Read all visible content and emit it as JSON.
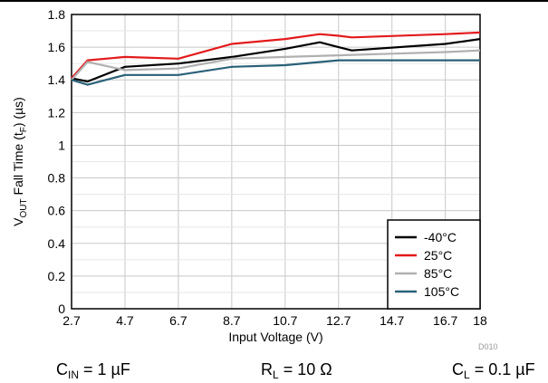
{
  "chart_data": {
    "type": "line",
    "xlabel": "Input Voltage (V)",
    "ylabel": {
      "main": "V",
      "sub": "OUT",
      "rest": " Fall Time (t",
      "sub2": "F",
      "end": ")  (µs)"
    },
    "xlim": [
      2.7,
      18
    ],
    "ylim": [
      0,
      1.8
    ],
    "xticks": [
      2.7,
      4.7,
      6.7,
      8.7,
      10.7,
      12.7,
      14.7,
      16.7,
      18
    ],
    "xtick_labels": [
      "2.7",
      "4.7",
      "6.7",
      "8.7",
      "10.7",
      "12.7",
      "14.7",
      "16.7",
      "18"
    ],
    "yticks": [
      0,
      0.2,
      0.4,
      0.6,
      0.8,
      1,
      1.2,
      1.4,
      1.6,
      1.8
    ],
    "ytick_labels": [
      "0",
      "0.2",
      "0.4",
      "0.6",
      "0.8",
      "1",
      "1.2",
      "1.4",
      "1.6",
      "1.8"
    ],
    "grid": true,
    "legend_position": "bottom-right",
    "series": [
      {
        "name": "-40°C",
        "color": "#000000",
        "x": [
          2.7,
          3.3,
          4.7,
          6.7,
          8.7,
          10.7,
          12.0,
          12.7,
          13.2,
          16.7,
          18
        ],
        "y": [
          1.41,
          1.39,
          1.48,
          1.5,
          1.54,
          1.59,
          1.63,
          1.6,
          1.58,
          1.62,
          1.65
        ]
      },
      {
        "name": "25°C",
        "color": "#e31a1c",
        "x": [
          2.7,
          3.3,
          4.7,
          6.7,
          8.7,
          10.7,
          12.0,
          12.7,
          13.2,
          16.7,
          18
        ],
        "y": [
          1.41,
          1.52,
          1.54,
          1.53,
          1.62,
          1.65,
          1.68,
          1.67,
          1.66,
          1.68,
          1.69
        ]
      },
      {
        "name": "85°C",
        "color": "#b0b0b0",
        "x": [
          2.7,
          3.3,
          4.7,
          6.7,
          8.7,
          10.7,
          12.7,
          14.7,
          16.7,
          18
        ],
        "y": [
          1.4,
          1.51,
          1.46,
          1.47,
          1.53,
          1.54,
          1.55,
          1.56,
          1.57,
          1.58
        ]
      },
      {
        "name": "105°C",
        "color": "#2a6178",
        "x": [
          2.7,
          3.3,
          4.7,
          6.7,
          8.7,
          10.7,
          12.7,
          14.7,
          16.7,
          18
        ],
        "y": [
          1.4,
          1.37,
          1.43,
          1.43,
          1.48,
          1.49,
          1.52,
          1.52,
          1.52,
          1.52
        ]
      }
    ]
  },
  "captions": {
    "cin": {
      "main": "C",
      "sub": "IN",
      "rest": " = 1 µF"
    },
    "rl": {
      "main": "R",
      "sub": "L",
      "rest": " = 10 Ω"
    },
    "cl": {
      "main": "C",
      "sub": "L",
      "rest": " = 0.1 µF"
    }
  },
  "figure_code": "D010"
}
